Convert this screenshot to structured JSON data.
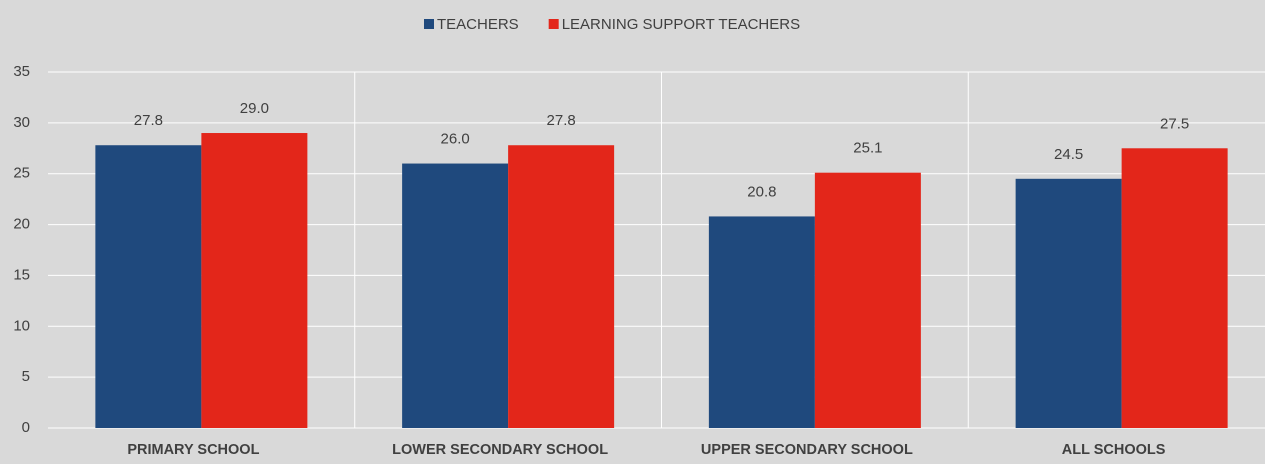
{
  "chart_data": {
    "type": "bar",
    "categories": [
      "PRIMARY SCHOOL",
      "LOWER SECONDARY SCHOOL",
      "UPPER SECONDARY SCHOOL",
      "ALL SCHOOLS"
    ],
    "series": [
      {
        "name": "TEACHERS",
        "color": "#1f497d",
        "values": [
          27.8,
          26.0,
          20.8,
          24.5
        ],
        "value_labels": [
          "27.8",
          "26.0",
          "20.8",
          "24.5"
        ]
      },
      {
        "name": "LEARNING SUPPORT TEACHERS",
        "color": "#e3261a",
        "values": [
          29.0,
          27.8,
          25.1,
          27.5
        ],
        "value_labels": [
          "29.0",
          "27.8",
          "25.1",
          "27.5"
        ]
      }
    ],
    "ylim": [
      0,
      35
    ],
    "yticks": [
      0,
      5,
      10,
      15,
      20,
      25,
      30,
      35
    ],
    "grid": true,
    "legend": "top"
  }
}
